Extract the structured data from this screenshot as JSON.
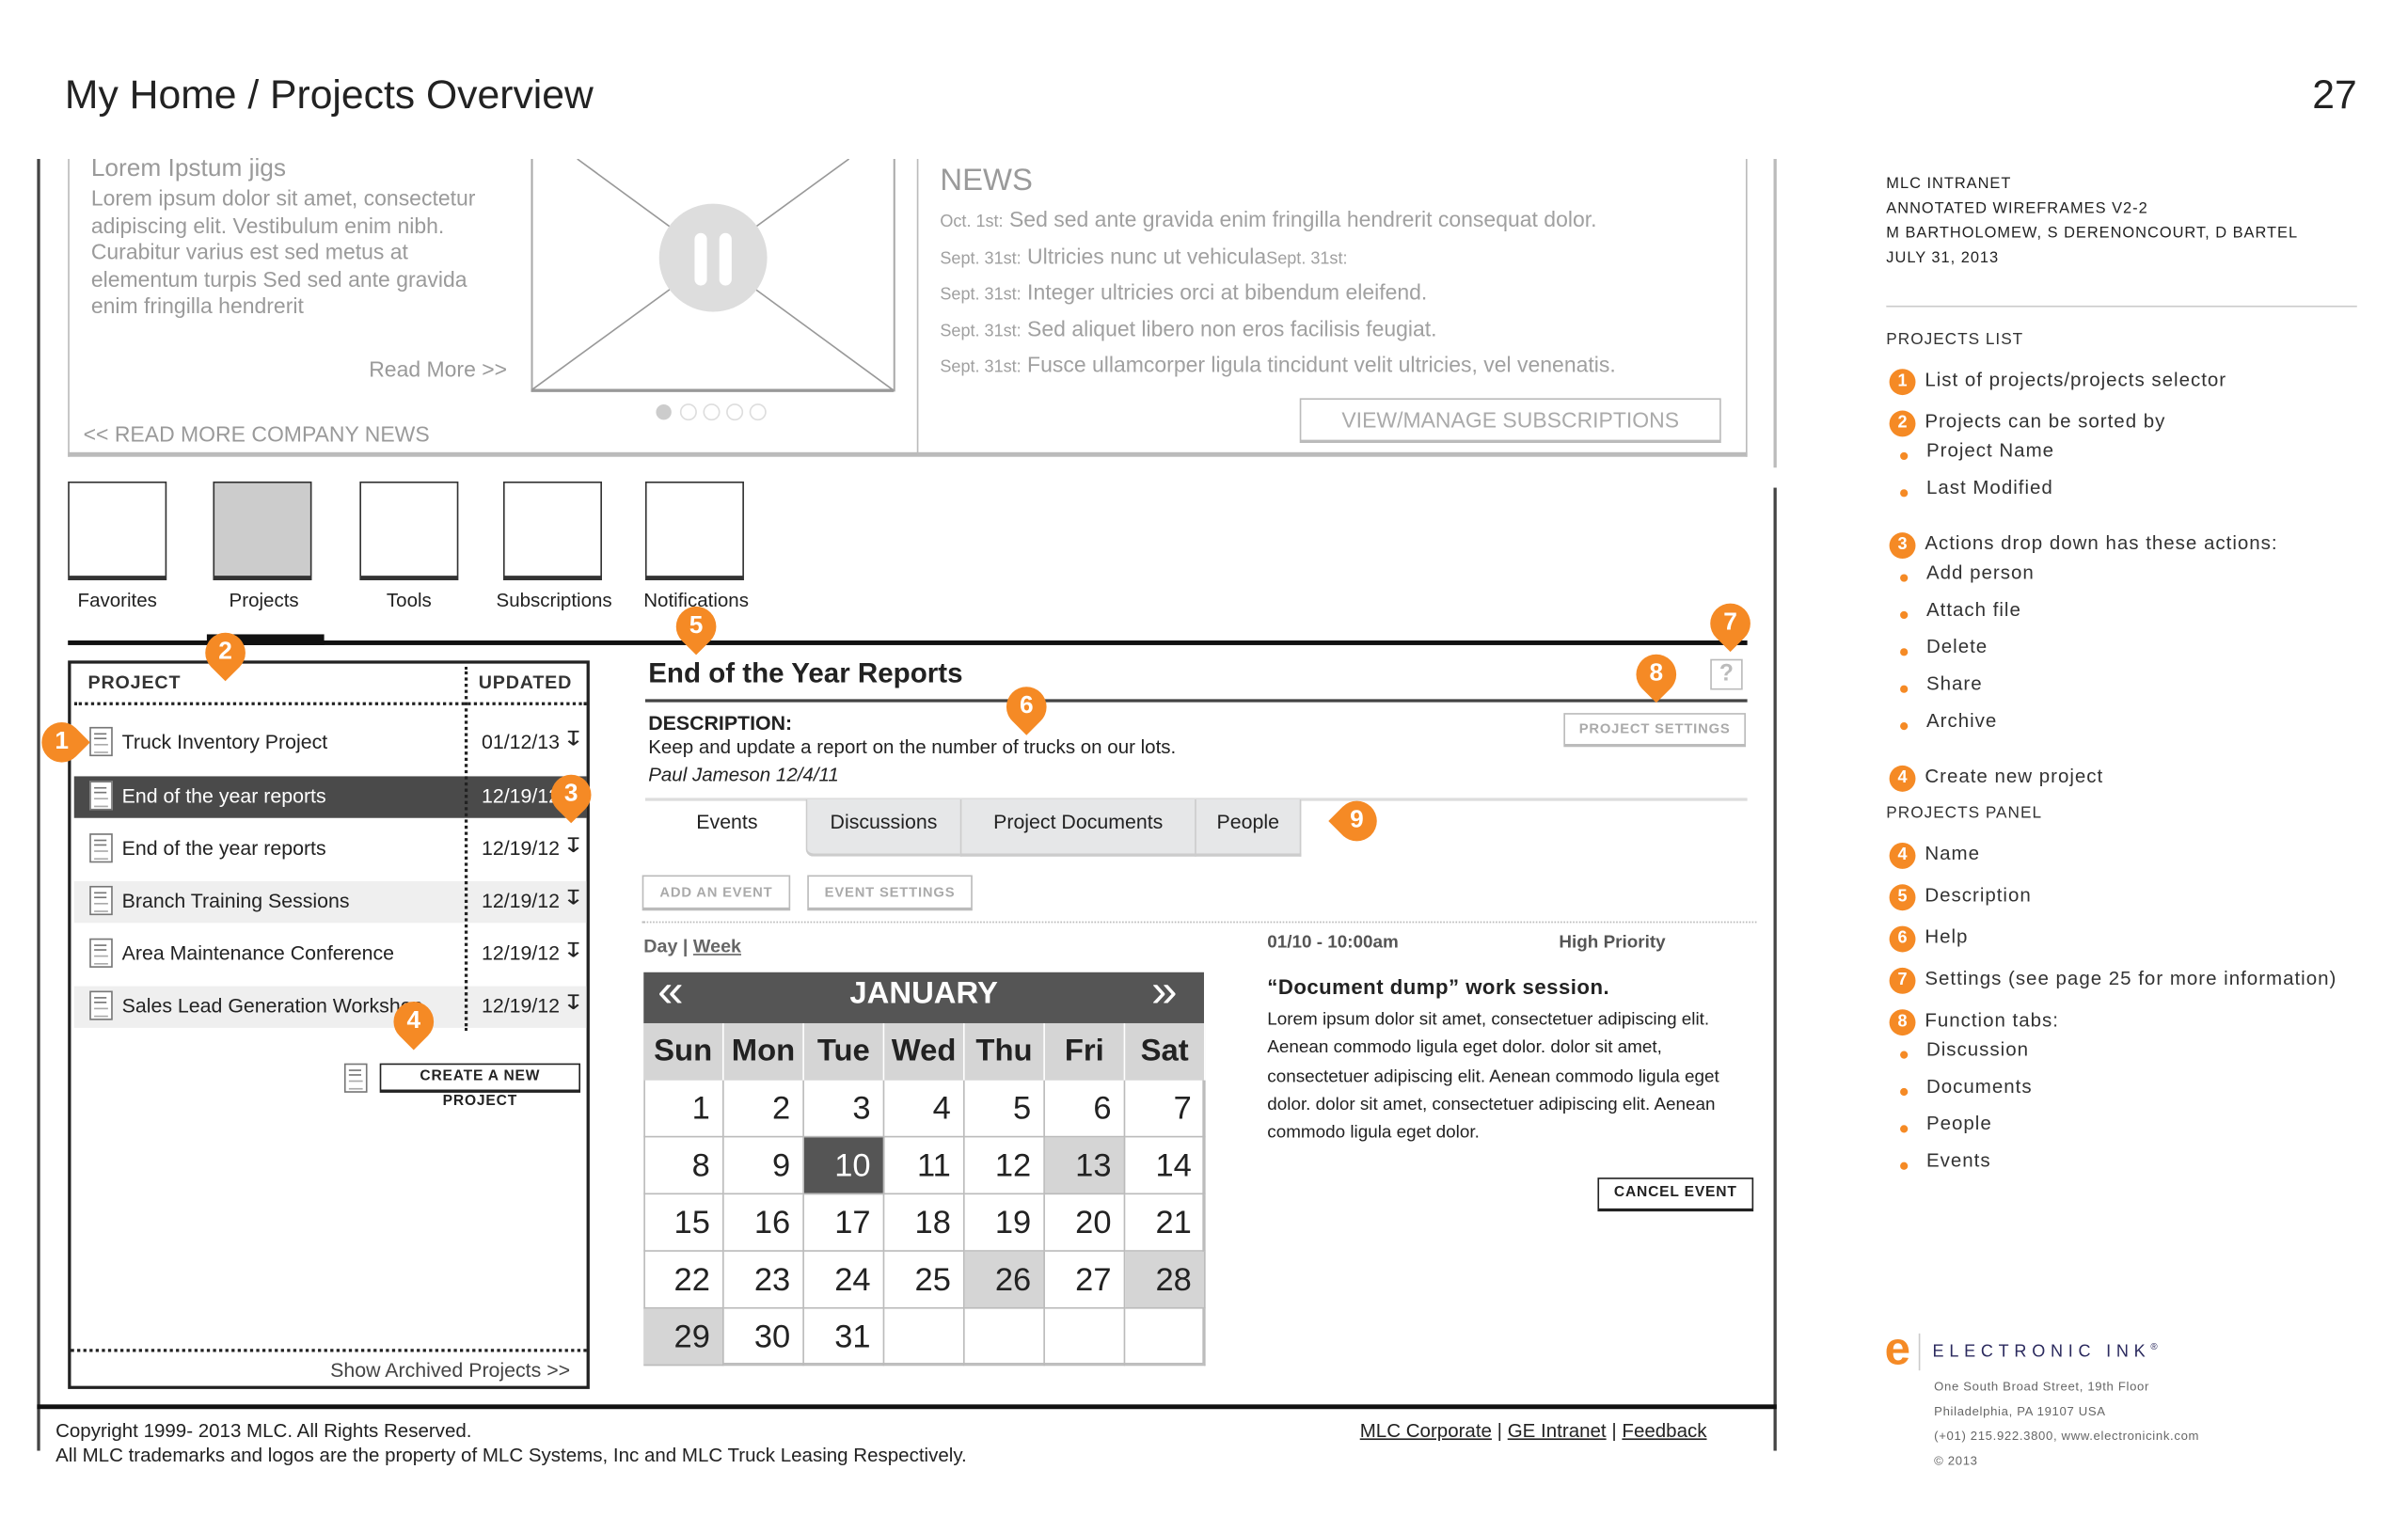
{
  "page": {
    "title": "My Home / Projects Overview",
    "page_number": "27"
  },
  "news_feature": {
    "heading": "Lorem Ipstum jigs",
    "body": [
      "Lorem ipsum dolor sit amet, consectetur",
      "adipiscing elit. Vestibulum enim nibh.",
      "Curabitur varius est sed metus at",
      "elementum turpis Sed sed ante gravida",
      "enim fringilla hendrerit"
    ],
    "read_more": "Read More >>",
    "company_news_link": "<< READ MORE COMPANY NEWS",
    "carousel": {
      "slides": 5,
      "active": 1,
      "icon": "pause-icon"
    }
  },
  "news": {
    "heading": "NEWS",
    "items": [
      {
        "date": "Oct. 1st:",
        "text": "Sed sed ante gravida enim fringilla hendrerit consequat  dolor."
      },
      {
        "date": "Sept. 31st:",
        "text": "Ultricies nunc ut vehicula",
        "trailing": "Sept. 31st:"
      },
      {
        "date": "Sept. 31st:",
        "text": "Integer ultricies orci at bibendum eleifend."
      },
      {
        "date": "Sept. 31st:",
        "text": "Sed aliquet libero non eros facilisis feugiat."
      },
      {
        "date": "Sept. 31st:",
        "text": "Fusce ullamcorper ligula tincidunt velit ultricies, vel venenatis."
      }
    ],
    "subscriptions_button": "VIEW/MANAGE SUBSCRIPTIONS"
  },
  "nav_tiles": [
    {
      "label": "Favorites",
      "active": false
    },
    {
      "label": "Projects",
      "active": true
    },
    {
      "label": "Tools",
      "active": false
    },
    {
      "label": "Subscriptions",
      "active": false
    },
    {
      "label": "Notifications",
      "active": false
    }
  ],
  "projects_list": {
    "col_project": "PROJECT",
    "col_updated": "UPDATED",
    "rows": [
      {
        "name": "Truck Inventory Project",
        "updated": "01/12/13",
        "selected": false
      },
      {
        "name": "End of the year reports",
        "updated": "12/19/12",
        "selected": true
      },
      {
        "name": "End of the year reports",
        "updated": "12/19/12",
        "selected": false
      },
      {
        "name": "Branch Training Sessions",
        "updated": "12/19/12",
        "selected": false
      },
      {
        "name": "Area Maintenance Conference",
        "updated": "12/19/12",
        "selected": false
      },
      {
        "name": "Sales Lead Generation Workshop",
        "updated": "12/19/12",
        "selected": false
      }
    ],
    "create_button": "CREATE A NEW PROJECT",
    "archived_link": "Show Archived Projects >>"
  },
  "project_panel": {
    "title": "End of the Year Reports",
    "help": "?",
    "settings_button": "PROJECT SETTINGS",
    "description_label": "DESCRIPTION:",
    "description": "Keep and update a report on the number of trucks on our lots.",
    "author_line": "Paul Jameson  12/4/11",
    "tabs": [
      {
        "label": "Events",
        "active": true
      },
      {
        "label": "Discussions",
        "active": false
      },
      {
        "label": "Project Documents",
        "active": false
      },
      {
        "label": "People",
        "active": false
      }
    ],
    "add_event": "ADD AN EVENT",
    "event_settings": "EVENT SETTINGS",
    "view_day": "Day",
    "view_sep": "|",
    "view_week": "Week"
  },
  "calendar": {
    "month": "JANUARY",
    "prev": "«",
    "next": "»",
    "day_names": [
      "Sun",
      "Mon",
      "Tue",
      "Wed",
      "Thu",
      "Fri",
      "Sat"
    ],
    "weeks": [
      [
        "1",
        "2",
        "3",
        "4",
        "5",
        "6",
        "7"
      ],
      [
        "8",
        "9",
        "10",
        "11",
        "12",
        "13",
        "14"
      ],
      [
        "15",
        "16",
        "17",
        "18",
        "19",
        "20",
        "21"
      ],
      [
        "22",
        "23",
        "24",
        "25",
        "26",
        "27",
        "28"
      ],
      [
        "29",
        "30",
        "31",
        "",
        "",
        "",
        ""
      ]
    ],
    "selected": "10",
    "highlighted": [
      "13",
      "26",
      "28",
      "29"
    ]
  },
  "event": {
    "datetime": "01/10 - 10:00am",
    "priority": "High Priority",
    "title": "“Document dump” work session.",
    "body": [
      "Lorem ipsum dolor sit amet, consectetuer adipiscing elit.",
      "Aenean commodo ligula eget dolor. dolor sit amet,",
      "consectetuer adipiscing elit. Aenean commodo ligula eget",
      "dolor. dolor sit amet, consectetuer adipiscing elit. Aenean",
      "commodo ligula eget dolor."
    ],
    "cancel_button": "CANCEL EVENT"
  },
  "footer": {
    "copyright": "Copyright 1999- 2013 MLC. All Rights Reserved.",
    "trademark": "All MLC trademarks and logos are the property of MLC Systems, Inc and MLC Truck Leasing Respectively.",
    "links": [
      "MLC Corporate",
      "GE Intranet",
      "Feedback"
    ],
    "sep": "|"
  },
  "annotation_pins": [
    "1",
    "2",
    "3",
    "4",
    "5",
    "6",
    "7",
    "8",
    "9"
  ],
  "sidebar": {
    "header": [
      "MLC INTRANET",
      "ANNOTATED WIREFRAMES V2-2",
      "M BARTHOLOMEW, S DERENONCOURT, D BARTEL",
      "JULY 31, 2013"
    ],
    "sections": [
      {
        "title": "PROJECTS LIST",
        "items": [
          {
            "num": "1",
            "text": "List of projects/projects selector",
            "bullets": []
          },
          {
            "num": "2",
            "text": "Projects can be sorted by",
            "bullets": [
              "Project Name",
              "Last Modified"
            ]
          },
          {
            "num": "3",
            "text": "Actions drop down has these actions:",
            "bullets": [
              "Add person",
              "Attach file",
              "Delete",
              "Share",
              "Archive"
            ]
          },
          {
            "num": "4",
            "text": "Create new project",
            "bullets": []
          }
        ]
      },
      {
        "title": "PROJECTS PANEL",
        "items": [
          {
            "num": "4",
            "text": "Name",
            "bullets": []
          },
          {
            "num": "5",
            "text": "Description",
            "bullets": []
          },
          {
            "num": "6",
            "text": "Help",
            "bullets": []
          },
          {
            "num": "7",
            "text": "Settings (see page 25 for more information)",
            "bullets": []
          },
          {
            "num": "8",
            "text": "Function tabs:",
            "bullets": [
              "Discussion",
              "Documents",
              "People",
              "Events"
            ]
          }
        ]
      }
    ],
    "logo": {
      "mark": "e",
      "name": "ELECTRONIC INK",
      "reg": "®"
    },
    "address": [
      "One South Broad Street, 19th Floor",
      "Philadelphia, PA 19107 USA",
      "(+01) 215.922.3800, www.electronicink.com",
      "© 2013"
    ]
  },
  "colors": {
    "accent": "#f58a25",
    "selected_row": "#4a4a4a",
    "tab_bg": "#e6e7e8",
    "calendar_header": "#555555",
    "logo_text": "#2b2a5e"
  }
}
